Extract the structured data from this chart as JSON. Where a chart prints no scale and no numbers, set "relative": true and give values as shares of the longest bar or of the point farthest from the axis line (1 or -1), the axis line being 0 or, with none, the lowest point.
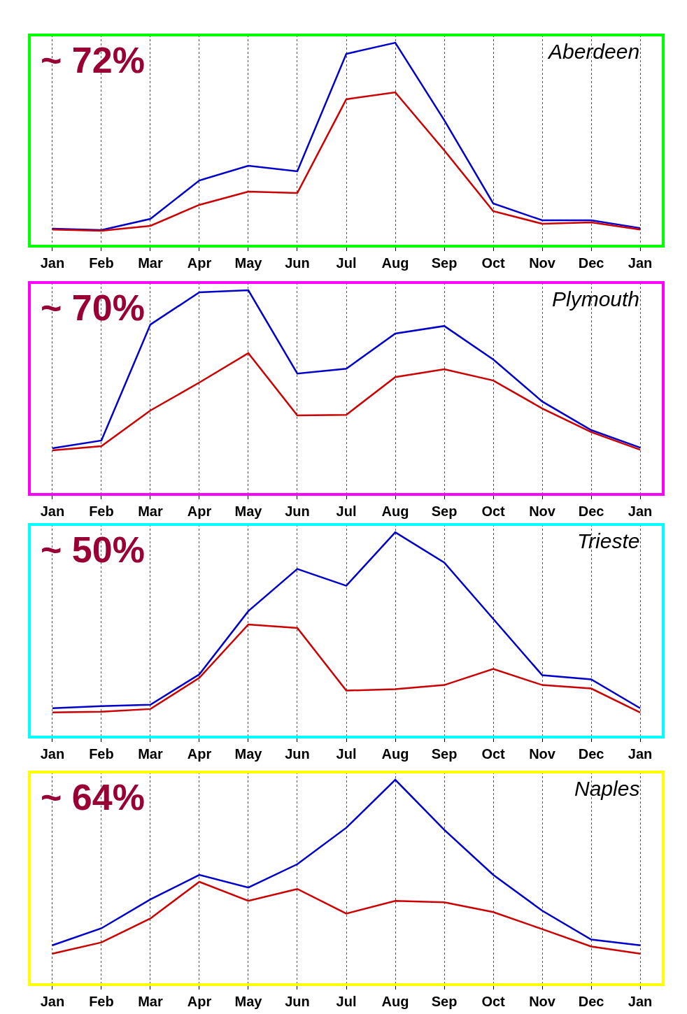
{
  "chart_data": [
    {
      "type": "line",
      "title": "Aberdeen",
      "annotations": [
        "~ 72%"
      ],
      "relative": true,
      "grid": "x",
      "categories": [
        "Jan",
        "Feb",
        "Mar",
        "Apr",
        "May",
        "Jun",
        "Jul",
        "Aug",
        "Sep",
        "Oct",
        "Nov",
        "Dec",
        "Jan"
      ],
      "series": [
        {
          "color": "#0000cc",
          "values": [
            0.086,
            0.079,
            0.134,
            0.323,
            0.395,
            0.368,
            0.945,
            1,
            0.619,
            0.21,
            0.127,
            0.127,
            0.089
          ]
        },
        {
          "color": "#cc0000",
          "values": [
            0.082,
            0.076,
            0.1,
            0.203,
            0.268,
            0.261,
            0.722,
            0.756,
            0.471,
            0.172,
            0.11,
            0.117,
            0.082
          ]
        }
      ]
    },
    {
      "type": "line",
      "title": "Plymouth",
      "annotations": [
        "~ 70%"
      ],
      "relative": true,
      "grid": "x",
      "categories": [
        "Jan",
        "Feb",
        "Mar",
        "Apr",
        "May",
        "Jun",
        "Jul",
        "Aug",
        "Sep",
        "Oct",
        "Nov",
        "Dec",
        "Jan"
      ],
      "series": [
        {
          "color": "#0000cc",
          "values": [
            0.226,
            0.264,
            0.832,
            0.99,
            1,
            0.592,
            0.616,
            0.788,
            0.825,
            0.661,
            0.455,
            0.315,
            0.229
          ]
        },
        {
          "color": "#cc0000",
          "values": [
            0.216,
            0.236,
            0.411,
            0.548,
            0.692,
            0.387,
            0.39,
            0.575,
            0.613,
            0.558,
            0.421,
            0.305,
            0.219
          ]
        }
      ]
    },
    {
      "type": "line",
      "title": "Trieste",
      "annotations": [
        "~ 50%"
      ],
      "relative": true,
      "grid": "x",
      "categories": [
        "Jan",
        "Feb",
        "Mar",
        "Apr",
        "May",
        "Jun",
        "Jul",
        "Aug",
        "Sep",
        "Oct",
        "Nov",
        "Dec",
        "Jan"
      ],
      "series": [
        {
          "color": "#0000cc",
          "values": [
            0.141,
            0.151,
            0.158,
            0.306,
            0.615,
            0.821,
            0.739,
            1,
            0.852,
            0.577,
            0.302,
            0.282,
            0.141
          ]
        },
        {
          "color": "#cc0000",
          "values": [
            0.12,
            0.124,
            0.137,
            0.289,
            0.55,
            0.533,
            0.227,
            0.234,
            0.254,
            0.333,
            0.254,
            0.237,
            0.12
          ]
        }
      ]
    },
    {
      "type": "line",
      "title": "Naples",
      "annotations": [
        "~ 64%"
      ],
      "relative": true,
      "grid": "x",
      "categories": [
        "Jan",
        "Feb",
        "Mar",
        "Apr",
        "May",
        "Jun",
        "Jul",
        "Aug",
        "Sep",
        "Oct",
        "Nov",
        "Dec",
        "Jan"
      ],
      "series": [
        {
          "color": "#0000cc",
          "values": [
            0.192,
            0.275,
            0.416,
            0.536,
            0.474,
            0.588,
            0.766,
            1,
            0.756,
            0.536,
            0.361,
            0.22,
            0.192
          ]
        },
        {
          "color": "#cc0000",
          "values": [
            0.151,
            0.206,
            0.323,
            0.502,
            0.409,
            0.467,
            0.347,
            0.409,
            0.402,
            0.354,
            0.271,
            0.186,
            0.151
          ]
        }
      ]
    }
  ]
}
